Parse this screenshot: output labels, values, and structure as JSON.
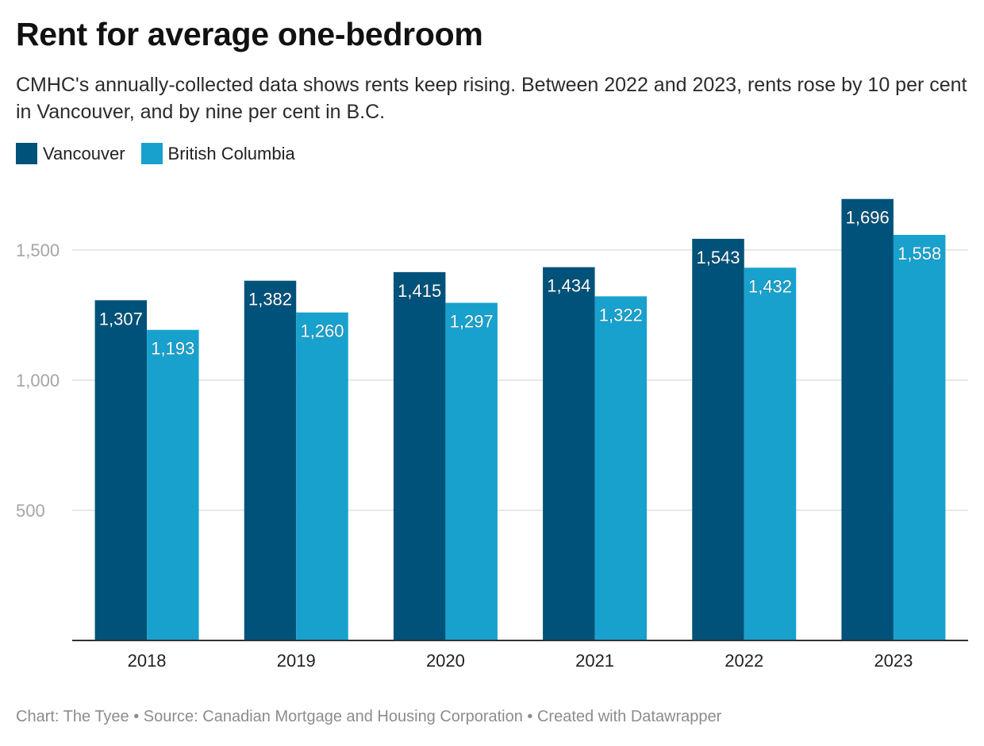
{
  "header": {
    "title": "Rent for average one-bedroom",
    "subtitle": "CMHC's annually-collected data shows rents keep rising. Between 2022 and 2023, rents rose by 10 per cent in Vancouver, and by nine per cent in B.C."
  },
  "legend": {
    "items": [
      {
        "label": "Vancouver",
        "color": "#00527a"
      },
      {
        "label": "British Columbia",
        "color": "#18a1cd"
      }
    ]
  },
  "footer": {
    "credit": "Chart: The Tyee • Source: Canadian Mortgage and Housing Corporation • Created with Datawrapper"
  },
  "chart_data": {
    "type": "bar",
    "title": "Rent for average one-bedroom",
    "categories": [
      "2018",
      "2019",
      "2020",
      "2021",
      "2022",
      "2023"
    ],
    "series": [
      {
        "name": "Vancouver",
        "color": "#00527a",
        "values": [
          1307,
          1382,
          1415,
          1434,
          1543,
          1696
        ],
        "labels": [
          "1,307",
          "1,382",
          "1,415",
          "1,434",
          "1,543",
          "1,696"
        ]
      },
      {
        "name": "British Columbia",
        "color": "#18a1cd",
        "values": [
          1193,
          1260,
          1297,
          1322,
          1432,
          1558
        ],
        "labels": [
          "1,193",
          "1,260",
          "1,297",
          "1,322",
          "1,432",
          "1,558"
        ]
      }
    ],
    "ylim": [
      0,
      1750
    ],
    "yticks": [
      500,
      1000,
      1500
    ],
    "ytick_labels": [
      "500",
      "1,000",
      "1,500"
    ],
    "xlabel": "",
    "ylabel": "",
    "grid": true,
    "legend_position": "top-left"
  }
}
